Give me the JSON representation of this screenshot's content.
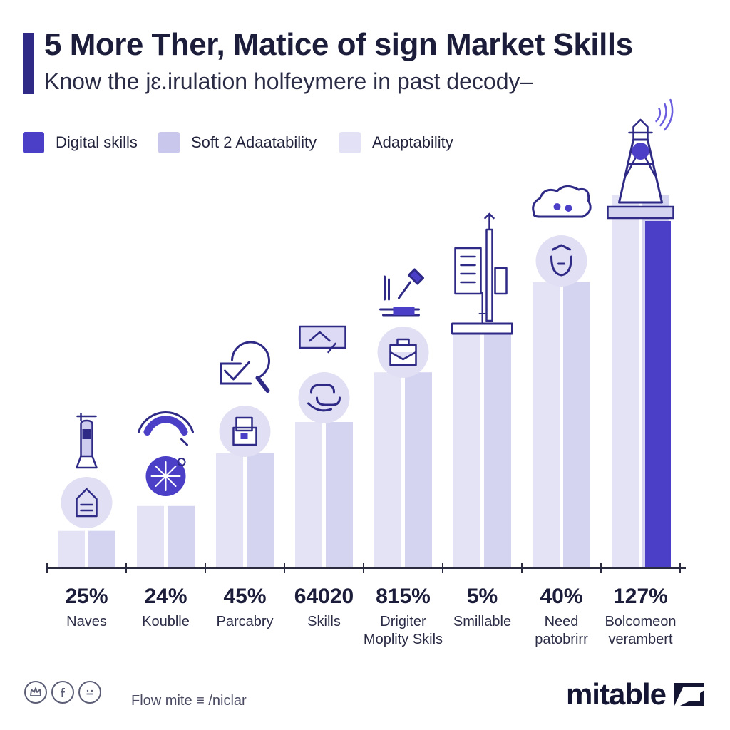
{
  "header": {
    "title": "5 More Ther, Matice of sign Market Skills",
    "subtitle": "Know the jɛ.irulation holfeymere in past decody–"
  },
  "legend": [
    {
      "label": "Digital skills",
      "color": "#4b3fc7"
    },
    {
      "label": "Soft 2 Adaatability",
      "color": "#c9c8ec"
    },
    {
      "label": "Adaptability",
      "color": "#e2e1f5"
    }
  ],
  "colors": {
    "digital": "#4b3fc7",
    "soft": "#d4d3f0",
    "adapt": "#e4e3f6",
    "icon_stroke": "#2e2a86",
    "icon_circle": "#e1dff3",
    "axis": "#2a2b3f"
  },
  "chart_data": {
    "type": "bar",
    "categories": [
      [
        "Naves"
      ],
      [
        "Koublle"
      ],
      [
        "Parcabry"
      ],
      [
        "Skills"
      ],
      [
        "Drigiter",
        "Moplity Skils"
      ],
      [
        "Smillable"
      ],
      [
        "Need",
        "patobrirr"
      ],
      [
        "Bolcomeon",
        "verambert"
      ]
    ],
    "value_labels": [
      "25%",
      "24%",
      "45%",
      "64020",
      "815%",
      "5%",
      "40%",
      "127%"
    ],
    "series": [
      {
        "values": [
          12,
          20,
          37,
          47,
          63,
          76,
          92,
          120
        ]
      },
      {
        "values": [
          12,
          20,
          37,
          47,
          63,
          76,
          92,
          120
        ]
      },
      {
        "values": [
          0,
          0,
          0,
          0,
          0,
          0,
          0,
          120
        ]
      }
    ],
    "icons": [
      "rocket-icon",
      "gauge-icon",
      "puzzle-icon",
      "chain-link-icon",
      "briefcase-icon",
      "lighthouse-icon",
      "brain-icon",
      "beacon-tower-icon"
    ],
    "ylim": [
      0,
      130
    ],
    "grid": false,
    "legend_position": "top-left"
  },
  "footer": {
    "note": "Flow mite ≡ /niclar",
    "brand": "mitable",
    "social_icons": [
      "crown-icon",
      "facebook-icon",
      "smiley-icon"
    ]
  }
}
